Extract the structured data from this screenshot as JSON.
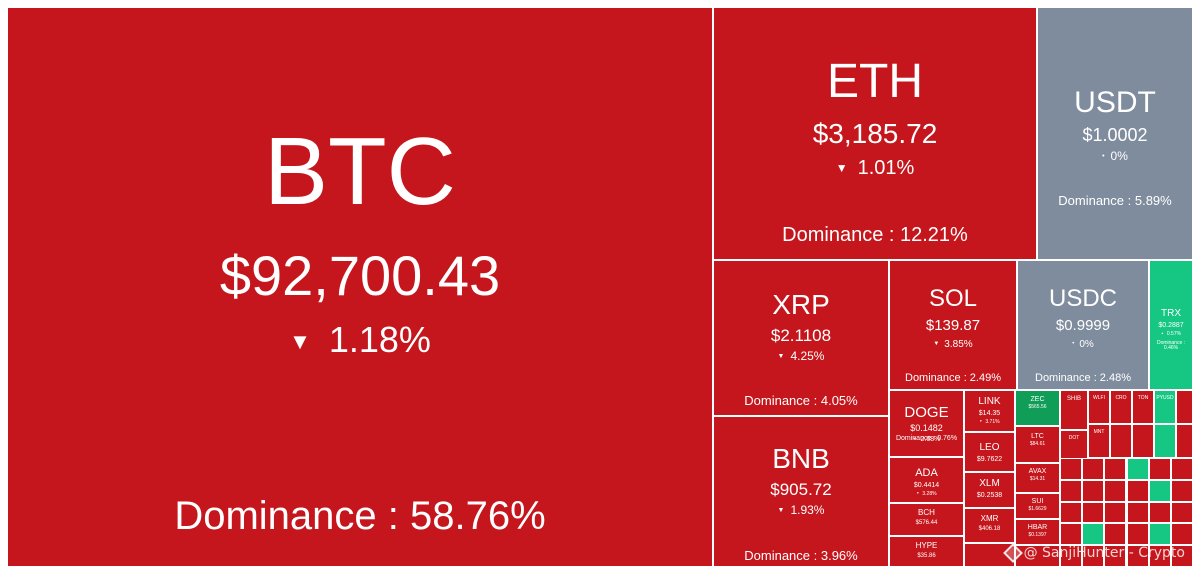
{
  "colors": {
    "down": "#c4161c",
    "flat": "#7f8c9d",
    "up": "#16c784",
    "up_dark": "#0f9d58",
    "border": "#ffffff"
  },
  "dominance_label": "Dominance",
  "watermark": "@ SanjiHunter - Crypto",
  "chart_data": {
    "type": "heatmap",
    "tiles": [
      {
        "symbol": "BTC",
        "price": "$92,700.43",
        "change": "1.18%",
        "direction": "down",
        "dominance": "58.76%"
      },
      {
        "symbol": "ETH",
        "price": "$3,185.72",
        "change": "1.01%",
        "direction": "down",
        "dominance": "12.21%"
      },
      {
        "symbol": "USDT",
        "price": "$1.0002",
        "change": "0%",
        "direction": "flat",
        "dominance": "5.89%"
      },
      {
        "symbol": "XRP",
        "price": "$2.1108",
        "change": "4.25%",
        "direction": "down",
        "dominance": "4.05%"
      },
      {
        "symbol": "BNB",
        "price": "$905.72",
        "change": "1.93%",
        "direction": "down",
        "dominance": "3.96%"
      },
      {
        "symbol": "SOL",
        "price": "$139.87",
        "change": "3.85%",
        "direction": "down",
        "dominance": "2.49%"
      },
      {
        "symbol": "USDC",
        "price": "$0.9999",
        "change": "0%",
        "direction": "flat",
        "dominance": "2.48%"
      },
      {
        "symbol": "TRX",
        "price": "$0.2887",
        "change": "0.57%",
        "direction": "up",
        "dominance": "0.46%"
      },
      {
        "symbol": "DOGE",
        "price": "$0.1482",
        "change": "2.68%",
        "direction": "down",
        "dominance": "0.76%"
      },
      {
        "symbol": "ADA",
        "price": "$0.4414",
        "change": "3.28%",
        "direction": "down",
        "dominance": ""
      },
      {
        "symbol": "BCH",
        "price": "$576.44",
        "change": "",
        "direction": "down",
        "dominance": ""
      },
      {
        "symbol": "HYPE",
        "price": "$35.86",
        "change": "",
        "direction": "down",
        "dominance": ""
      },
      {
        "symbol": "LINK",
        "price": "$14.35",
        "change": "3.71%",
        "direction": "down",
        "dominance": ""
      },
      {
        "symbol": "LEO",
        "price": "$9.7622",
        "change": "",
        "direction": "down",
        "dominance": ""
      },
      {
        "symbol": "XLM",
        "price": "$0.2538",
        "change": "",
        "direction": "down",
        "dominance": ""
      },
      {
        "symbol": "XMR",
        "price": "$406.18",
        "change": "",
        "direction": "down",
        "dominance": ""
      },
      {
        "symbol": "ZEC",
        "price": "$565.56",
        "change": "",
        "direction": "up",
        "dominance": ""
      },
      {
        "symbol": "LTC",
        "price": "$84.61",
        "change": "",
        "direction": "down",
        "dominance": ""
      },
      {
        "symbol": "AVAX",
        "price": "$14.31",
        "change": "",
        "direction": "down",
        "dominance": ""
      },
      {
        "symbol": "SUI",
        "price": "$1.6629",
        "change": "",
        "direction": "down",
        "dominance": ""
      },
      {
        "symbol": "HBAR",
        "price": "$0.1397",
        "change": "",
        "direction": "down",
        "dominance": ""
      },
      {
        "symbol": "SHIB",
        "price": "",
        "change": "",
        "direction": "down",
        "dominance": ""
      },
      {
        "symbol": "WLFI",
        "price": "",
        "change": "",
        "direction": "down",
        "dominance": ""
      },
      {
        "symbol": "CRO",
        "price": "",
        "change": "",
        "direction": "down",
        "dominance": ""
      },
      {
        "symbol": "TON",
        "price": "",
        "change": "",
        "direction": "down",
        "dominance": ""
      },
      {
        "symbol": "PYUSD",
        "price": "",
        "change": "",
        "direction": "up",
        "dominance": ""
      },
      {
        "symbol": "DOT",
        "price": "",
        "change": "",
        "direction": "down",
        "dominance": ""
      },
      {
        "symbol": "MNT",
        "price": "",
        "change": "",
        "direction": "down",
        "dominance": ""
      }
    ]
  }
}
